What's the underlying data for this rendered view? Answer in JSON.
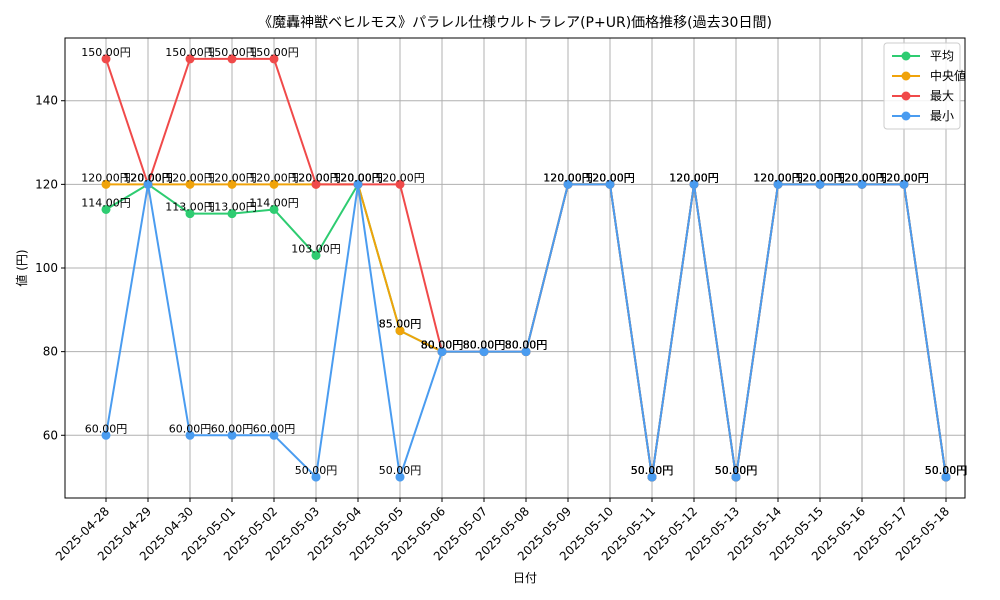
{
  "chart_data": {
    "type": "line",
    "title": "《魔轟神獣ベヒルモス》パラレル仕様ウルトラレア(P+UR)価格推移(過去30日間)",
    "xlabel": "日付",
    "ylabel": "値 (円)",
    "ylim": [
      45,
      155
    ],
    "yticks": [
      60,
      80,
      100,
      120,
      140
    ],
    "grid": true,
    "legend_position": "top-right",
    "label_suffix": "円",
    "categories": [
      "2025-04-28",
      "2025-04-29",
      "2025-04-30",
      "2025-05-01",
      "2025-05-02",
      "2025-05-03",
      "2025-05-04",
      "2025-05-05",
      "2025-05-06",
      "2025-05-07",
      "2025-05-08",
      "2025-05-09",
      "2025-05-10",
      "2025-05-11",
      "2025-05-12",
      "2025-05-13",
      "2025-05-14",
      "2025-05-15",
      "2025-05-16",
      "2025-05-17",
      "2025-05-18"
    ],
    "series": [
      {
        "name": "平均",
        "color": "#2ecc71",
        "values": [
          114,
          120,
          113,
          113,
          114,
          103,
          120,
          85,
          80,
          80,
          80,
          120,
          120,
          50,
          120,
          50,
          120,
          120,
          120,
          120,
          50
        ]
      },
      {
        "name": "中央値",
        "color": "#f0a30a",
        "values": [
          120,
          120,
          120,
          120,
          120,
          120,
          120,
          85,
          80,
          80,
          80,
          120,
          120,
          50,
          120,
          50,
          120,
          120,
          120,
          120,
          50
        ]
      },
      {
        "name": "最大",
        "color": "#f04a4a",
        "values": [
          150,
          120,
          150,
          150,
          150,
          120,
          120,
          120,
          80,
          80,
          80,
          120,
          120,
          50,
          120,
          50,
          120,
          120,
          120,
          120,
          50
        ]
      },
      {
        "name": "最小",
        "color": "#4a9cf0",
        "values": [
          60,
          120,
          60,
          60,
          60,
          50,
          120,
          50,
          80,
          80,
          80,
          120,
          120,
          50,
          120,
          50,
          120,
          120,
          120,
          120,
          50
        ]
      }
    ]
  }
}
